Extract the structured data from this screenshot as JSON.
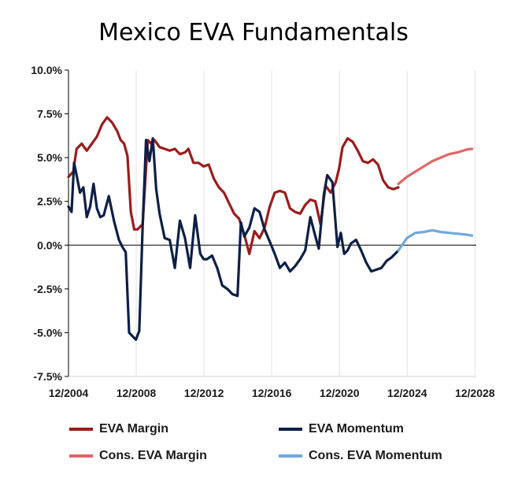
{
  "chart_data": {
    "type": "line",
    "title": "Mexico EVA Fundamentals",
    "xlabel": "",
    "ylabel": "",
    "xlim": [
      2004.92,
      2029.0
    ],
    "ylim": [
      -7.5,
      10.0
    ],
    "y_ticks": [
      -7.5,
      -5.0,
      -2.5,
      0.0,
      2.5,
      5.0,
      7.5,
      10.0
    ],
    "y_tick_labels": [
      "-7.5%",
      "-5.0%",
      "-2.5%",
      "0.0%",
      "2.5%",
      "5.0%",
      "7.5%",
      "10.0%"
    ],
    "x_ticks": [
      2004.92,
      2008.92,
      2012.92,
      2016.92,
      2020.92,
      2024.92,
      2028.92
    ],
    "x_tick_labels": [
      "12/2004",
      "12/2008",
      "12/2012",
      "12/2016",
      "12/2020",
      "12/2024",
      "12/2028"
    ],
    "grid": "vertical",
    "legend_position": "bottom",
    "series": [
      {
        "name": "EVA Margin",
        "color": "#9b1c1c",
        "x": [
          2004.92,
          2005.2,
          2005.4,
          2005.7,
          2006.0,
          2006.3,
          2006.6,
          2006.9,
          2007.2,
          2007.5,
          2007.8,
          2008.0,
          2008.2,
          2008.4,
          2008.6,
          2008.8,
          2009.0,
          2009.3,
          2009.6,
          2009.8,
          2010.0,
          2010.3,
          2010.6,
          2010.9,
          2011.2,
          2011.5,
          2011.8,
          2012.0,
          2012.3,
          2012.6,
          2012.9,
          2013.2,
          2013.5,
          2013.8,
          2014.1,
          2014.4,
          2014.7,
          2015.0,
          2015.3,
          2015.6,
          2015.9,
          2016.2,
          2016.5,
          2016.8,
          2017.1,
          2017.4,
          2017.7,
          2018.0,
          2018.3,
          2018.6,
          2018.9,
          2019.2,
          2019.5,
          2019.8,
          2020.1,
          2020.4,
          2020.7,
          2020.9,
          2021.1,
          2021.4,
          2021.7,
          2022.0,
          2022.3,
          2022.6,
          2022.9,
          2023.2,
          2023.5,
          2023.8,
          2024.1,
          2024.4
        ],
        "values": [
          3.9,
          4.2,
          5.5,
          5.8,
          5.4,
          5.8,
          6.2,
          6.9,
          7.3,
          7.0,
          6.5,
          6.0,
          5.8,
          5.1,
          1.9,
          0.9,
          0.9,
          1.2,
          6.0,
          5.8,
          6.0,
          5.6,
          5.5,
          5.4,
          5.5,
          5.2,
          5.3,
          5.5,
          4.7,
          4.7,
          4.5,
          4.6,
          3.8,
          3.3,
          3.0,
          2.4,
          1.8,
          1.5,
          0.6,
          -0.5,
          0.8,
          0.4,
          1.0,
          2.2,
          3.0,
          3.1,
          3.0,
          2.1,
          1.9,
          1.8,
          2.3,
          2.6,
          2.5,
          1.2,
          3.4,
          3.0,
          3.6,
          4.4,
          5.6,
          6.1,
          5.9,
          5.4,
          4.8,
          4.7,
          4.9,
          4.6,
          3.7,
          3.3,
          3.2,
          3.3
        ]
      },
      {
        "name": "EVA Momentum",
        "color": "#0d1f45",
        "x": [
          2004.92,
          2005.1,
          2005.25,
          2005.4,
          2005.6,
          2005.8,
          2006.0,
          2006.2,
          2006.4,
          2006.6,
          2006.8,
          2007.0,
          2007.3,
          2007.6,
          2007.9,
          2008.1,
          2008.3,
          2008.5,
          2008.7,
          2008.9,
          2009.1,
          2009.3,
          2009.5,
          2009.7,
          2009.9,
          2010.1,
          2010.3,
          2010.6,
          2010.9,
          2011.2,
          2011.5,
          2011.8,
          2012.1,
          2012.4,
          2012.7,
          2012.9,
          2013.1,
          2013.4,
          2013.7,
          2014.0,
          2014.3,
          2014.6,
          2014.9,
          2015.1,
          2015.3,
          2015.6,
          2015.9,
          2016.2,
          2016.5,
          2016.8,
          2017.1,
          2017.4,
          2017.7,
          2018.0,
          2018.3,
          2018.6,
          2018.9,
          2019.2,
          2019.5,
          2019.7,
          2020.0,
          2020.2,
          2020.5,
          2020.8,
          2021.0,
          2021.2,
          2021.4,
          2021.6,
          2021.9,
          2022.2,
          2022.5,
          2022.8,
          2023.1,
          2023.4,
          2023.7,
          2024.0,
          2024.3,
          2024.4
        ],
        "values": [
          2.2,
          1.9,
          4.7,
          4.0,
          3.0,
          3.3,
          1.6,
          2.2,
          3.5,
          2.1,
          1.6,
          1.7,
          2.8,
          1.4,
          0.3,
          -0.1,
          -0.4,
          -5.0,
          -5.2,
          -5.4,
          -4.9,
          1.1,
          6.0,
          4.8,
          6.1,
          3.2,
          1.8,
          0.4,
          0.3,
          -1.3,
          1.4,
          0.4,
          -1.3,
          1.7,
          -0.5,
          -0.8,
          -0.8,
          -0.6,
          -1.3,
          -2.3,
          -2.5,
          -2.8,
          -2.9,
          1.3,
          0.5,
          1.0,
          2.1,
          1.9,
          0.9,
          0.2,
          -0.5,
          -1.3,
          -1.0,
          -1.5,
          -1.2,
          -0.8,
          -0.3,
          1.6,
          0.5,
          -0.2,
          2.9,
          4.0,
          3.6,
          -0.1,
          0.7,
          -0.5,
          -0.3,
          0.1,
          0.3,
          -0.3,
          -1.0,
          -1.5,
          -1.4,
          -1.3,
          -0.9,
          -0.7,
          -0.4,
          -0.3
        ]
      },
      {
        "name": "Cons. EVA Margin",
        "color": "#e06666",
        "x": [
          2024.4,
          2024.9,
          2025.4,
          2025.9,
          2026.4,
          2026.9,
          2027.4,
          2027.9,
          2028.4,
          2028.75
        ],
        "values": [
          3.5,
          3.9,
          4.2,
          4.5,
          4.8,
          5.0,
          5.2,
          5.3,
          5.45,
          5.5
        ]
      },
      {
        "name": "Cons. EVA Momentum",
        "color": "#6fa8dc",
        "x": [
          2024.4,
          2024.9,
          2025.4,
          2025.9,
          2026.4,
          2026.9,
          2027.4,
          2027.9,
          2028.4,
          2028.75
        ],
        "values": [
          -0.3,
          0.4,
          0.7,
          0.75,
          0.85,
          0.75,
          0.7,
          0.65,
          0.6,
          0.55
        ]
      }
    ]
  }
}
